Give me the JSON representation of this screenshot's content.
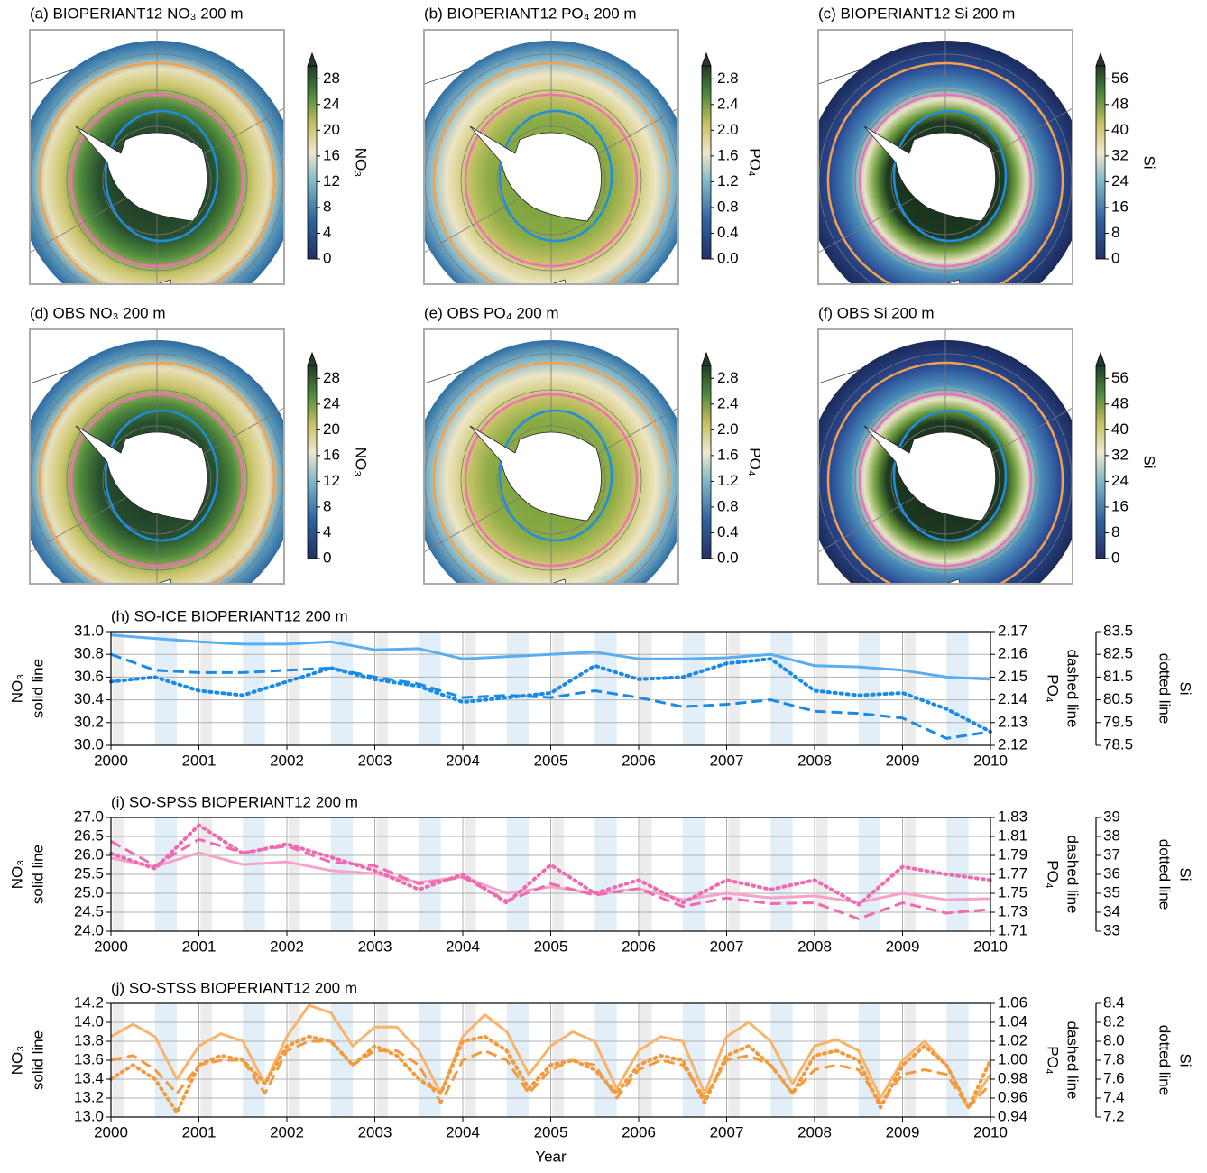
{
  "chart_data": [
    {
      "type": "map",
      "title": "(a) BIOPERIANT12 NO₃ 200 m",
      "colorbar": {
        "label": "NO₃",
        "lim": [
          0,
          30
        ],
        "ticks": [
          0,
          4,
          8,
          12,
          16,
          20,
          24,
          28
        ]
      }
    },
    {
      "type": "map",
      "title": "(b) BIOPERIANT12 PO₄ 200 m",
      "colorbar": {
        "label": "PO₄",
        "lim": [
          0,
          3
        ],
        "ticks": [
          {
            "value": 0,
            "label": "0.0"
          },
          0.4,
          0.8,
          1.2,
          1.6,
          {
            "value": 2,
            "label": "2.0"
          },
          2.4,
          2.8
        ]
      }
    },
    {
      "type": "map",
      "title": "(c) BIOPERIANT12 Si 200 m",
      "colorbar": {
        "label": "Si",
        "lim": [
          0,
          60
        ],
        "ticks": [
          0,
          8,
          16,
          24,
          32,
          40,
          48,
          56
        ]
      }
    },
    {
      "type": "map",
      "title": "(d) OBS NO₃ 200 m",
      "colorbar": {
        "label": "NO₃",
        "lim": [
          0,
          30
        ],
        "ticks": [
          0,
          4,
          8,
          12,
          16,
          20,
          24,
          28
        ]
      }
    },
    {
      "type": "map",
      "title": "(e) OBS PO₄ 200 m",
      "colorbar": {
        "label": "PO₄",
        "lim": [
          0,
          3
        ],
        "ticks": [
          {
            "value": 0,
            "label": "0.0"
          },
          0.4,
          0.8,
          1.2,
          1.6,
          {
            "value": 2,
            "label": "2.0"
          },
          2.4,
          2.8
        ]
      }
    },
    {
      "type": "map",
      "title": "(f) OBS Si 200 m",
      "colorbar": {
        "label": "Si",
        "lim": [
          0,
          60
        ],
        "ticks": [
          0,
          8,
          16,
          24,
          32,
          40,
          48,
          56
        ]
      }
    },
    {
      "type": "line",
      "title": "(h) SO-ICE BIOPERIANT12 200 m",
      "grid": true,
      "ylabel": [
        "NO₃",
        "solid line"
      ],
      "y2label": [
        "PO₄",
        "dashed line"
      ],
      "y3label": [
        "Si",
        "dotted line"
      ],
      "xlim": [
        2000,
        2010
      ],
      "xticks": [
        2000,
        2001,
        2002,
        2003,
        2004,
        2005,
        2006,
        2007,
        2008,
        2009,
        2010
      ],
      "ylim": [
        30.0,
        31.0
      ],
      "yticks": [
        {
          "value": 30,
          "label": "30.0"
        },
        30.2,
        30.4,
        30.6,
        30.8,
        {
          "value": 31,
          "label": "31.0"
        }
      ],
      "y2lim": [
        2.12,
        2.17
      ],
      "y2ticks": [
        2.12,
        2.13,
        2.14,
        2.15,
        2.16,
        2.17
      ],
      "y3lim": [
        78.5,
        83.5
      ],
      "y3ticks": [
        78.5,
        79.5,
        80.5,
        81.5,
        82.5,
        83.5
      ],
      "x": [
        2000,
        2000.5,
        2001,
        2001.5,
        2002,
        2002.5,
        2003,
        2003.5,
        2004,
        2004.5,
        2005,
        2005.5,
        2006,
        2006.5,
        2007,
        2007.5,
        2008,
        2008.5,
        2009,
        2009.5,
        2010
      ],
      "series": [
        {
          "name": "NO₃",
          "style": "solid",
          "color": "#5aaef0",
          "values": [
            30.97,
            30.94,
            30.91,
            30.89,
            30.89,
            30.91,
            30.84,
            30.85,
            30.76,
            30.78,
            30.8,
            30.82,
            30.76,
            30.76,
            30.77,
            30.8,
            30.7,
            30.69,
            30.66,
            30.6,
            30.58
          ]
        },
        {
          "name": "PO₄",
          "style": "dashed",
          "color": "#1a8ae8",
          "axis": "y2",
          "values": [
            2.16,
            2.153,
            2.152,
            2.152,
            2.153,
            2.154,
            2.15,
            2.147,
            2.141,
            2.142,
            2.141,
            2.144,
            2.141,
            2.137,
            2.138,
            2.14,
            2.135,
            2.134,
            2.132,
            2.123,
            2.126
          ]
        },
        {
          "name": "Si",
          "style": "dotted",
          "color": "#1a8ae8",
          "axis": "y3",
          "values": [
            81.3,
            81.5,
            80.9,
            80.7,
            81.3,
            81.9,
            81.4,
            81.1,
            80.4,
            80.6,
            80.8,
            82.0,
            81.4,
            81.5,
            82.1,
            82.3,
            80.9,
            80.7,
            80.8,
            80.1,
            79.1
          ]
        }
      ]
    },
    {
      "type": "line",
      "title": "(i) SO-SPSS BIOPERIANT12 200 m",
      "grid": true,
      "ylabel": [
        "NO₃",
        "solid line"
      ],
      "y2label": [
        "PO₄",
        "dashed line"
      ],
      "y3label": [
        "Si",
        "dotted line"
      ],
      "xlim": [
        2000,
        2010
      ],
      "xticks": [
        2000,
        2001,
        2002,
        2003,
        2004,
        2005,
        2006,
        2007,
        2008,
        2009,
        2010
      ],
      "ylim": [
        24.0,
        27.0
      ],
      "yticks": [
        {
          "value": 24,
          "label": "24.0"
        },
        24.5,
        {
          "value": 25,
          "label": "25.0"
        },
        25.5,
        {
          "value": 26,
          "label": "26.0"
        },
        26.5,
        {
          "value": 27,
          "label": "27.0"
        }
      ],
      "y2lim": [
        1.71,
        1.83
      ],
      "y2ticks": [
        1.71,
        1.73,
        1.75,
        1.77,
        1.79,
        1.81,
        1.83
      ],
      "y3lim": [
        33,
        39
      ],
      "y3ticks": [
        33,
        34,
        35,
        36,
        37,
        38,
        39
      ],
      "x": [
        2000,
        2000.5,
        2001,
        2001.5,
        2002,
        2002.5,
        2003,
        2003.5,
        2004,
        2004.5,
        2005,
        2005.5,
        2006,
        2006.5,
        2007,
        2007.5,
        2008,
        2008.5,
        2009,
        2009.5,
        2010
      ],
      "series": [
        {
          "name": "NO₃",
          "style": "solid",
          "color": "#f6a3c9",
          "values": [
            25.93,
            25.7,
            26.07,
            25.76,
            25.83,
            25.6,
            25.52,
            25.29,
            25.43,
            25.0,
            25.17,
            25.0,
            25.12,
            24.83,
            25.0,
            24.88,
            24.93,
            24.76,
            25.0,
            24.83,
            24.86
          ]
        },
        {
          "name": "PO₄",
          "style": "dashed",
          "color": "#f06ab0",
          "axis": "y2",
          "values": [
            1.805,
            1.779,
            1.807,
            1.793,
            1.8,
            1.783,
            1.779,
            1.76,
            1.767,
            1.742,
            1.76,
            1.748,
            1.755,
            1.736,
            1.745,
            1.739,
            1.74,
            1.723,
            1.74,
            1.729,
            1.733
          ]
        },
        {
          "name": "Si",
          "style": "dotted",
          "color": "#f06ab0",
          "axis": "y3",
          "values": [
            37.1,
            36.3,
            38.6,
            37.1,
            37.6,
            36.9,
            36.2,
            35.2,
            36.0,
            34.5,
            36.5,
            35.0,
            35.7,
            34.5,
            35.7,
            35.2,
            35.7,
            34.4,
            36.4,
            36.0,
            35.7
          ]
        }
      ]
    },
    {
      "type": "line",
      "title": "(j) SO-STSS BIOPERIANT12 200 m",
      "grid": true,
      "xlabel": "Year",
      "ylabel": [
        "NO₃",
        "solid line"
      ],
      "y2label": [
        "PO₄",
        "dashed line"
      ],
      "y3label": [
        "Si",
        "dotted line"
      ],
      "xlim": [
        2000,
        2010
      ],
      "xticks": [
        2000,
        2001,
        2002,
        2003,
        2004,
        2005,
        2006,
        2007,
        2008,
        2009,
        2010
      ],
      "ylim": [
        13.0,
        14.2
      ],
      "yticks": [
        {
          "value": 13,
          "label": "13.0"
        },
        13.2,
        13.4,
        13.6,
        13.8,
        {
          "value": 14,
          "label": "14.0"
        },
        14.2
      ],
      "y2lim": [
        0.94,
        1.06
      ],
      "y2ticks": [
        0.94,
        0.96,
        0.98,
        {
          "value": 1,
          "label": "1.00"
        },
        1.02,
        1.04,
        1.06
      ],
      "y3lim": [
        7.2,
        8.4
      ],
      "y3ticks": [
        7.2,
        7.4,
        7.6,
        7.8,
        {
          "value": 8,
          "label": "8.0"
        },
        8.2,
        8.4
      ],
      "x": [
        2000,
        2000.25,
        2000.5,
        2000.75,
        2001,
        2001.25,
        2001.5,
        2001.75,
        2002,
        2002.25,
        2002.5,
        2002.75,
        2003,
        2003.25,
        2003.5,
        2003.75,
        2004,
        2004.25,
        2004.5,
        2004.75,
        2005,
        2005.25,
        2005.5,
        2005.75,
        2006,
        2006.25,
        2006.5,
        2006.75,
        2007,
        2007.25,
        2007.5,
        2007.75,
        2008,
        2008.25,
        2008.5,
        2008.75,
        2009,
        2009.25,
        2009.5,
        2009.75,
        2010
      ],
      "series": [
        {
          "name": "NO₃",
          "style": "solid",
          "color": "#f8b56a",
          "values": [
            13.85,
            13.98,
            13.85,
            13.4,
            13.75,
            13.88,
            13.8,
            13.35,
            13.85,
            14.18,
            14.1,
            13.75,
            13.95,
            13.95,
            13.7,
            13.25,
            13.85,
            14.08,
            13.9,
            13.45,
            13.75,
            13.9,
            13.8,
            13.3,
            13.7,
            13.85,
            13.8,
            13.25,
            13.85,
            14.0,
            13.8,
            13.35,
            13.75,
            13.82,
            13.7,
            13.2,
            13.6,
            13.8,
            13.55,
            13.1,
            13.45
          ]
        },
        {
          "name": "PO₄",
          "style": "dashed",
          "color": "#f39a3c",
          "axis": "y2",
          "values": [
            1.0,
            1.005,
            0.99,
            0.965,
            0.995,
            1.0,
            1.0,
            0.965,
            1.01,
            1.02,
            1.02,
            0.995,
            1.01,
            1.01,
            0.995,
            0.955,
            1.0,
            1.01,
            1.0,
            0.965,
            0.99,
            1.0,
            0.995,
            0.96,
            0.99,
            1.0,
            0.995,
            0.96,
            1.0,
            1.005,
            0.995,
            0.965,
            0.99,
            0.995,
            0.99,
            0.955,
            0.985,
            0.99,
            0.985,
            0.95,
            0.975
          ]
        },
        {
          "name": "Si",
          "style": "dotted",
          "color": "#f39a3c",
          "axis": "y3",
          "values": [
            7.6,
            7.75,
            7.6,
            7.25,
            7.75,
            7.85,
            7.8,
            7.55,
            7.95,
            8.05,
            8.0,
            7.75,
            7.95,
            7.85,
            7.6,
            7.45,
            8.0,
            8.05,
            7.9,
            7.5,
            7.75,
            7.8,
            7.7,
            7.45,
            7.75,
            7.85,
            7.8,
            7.35,
            7.85,
            7.95,
            7.75,
            7.45,
            7.85,
            7.9,
            7.8,
            7.3,
            7.75,
            7.95,
            7.75,
            7.3,
            7.8
          ]
        }
      ]
    }
  ]
}
